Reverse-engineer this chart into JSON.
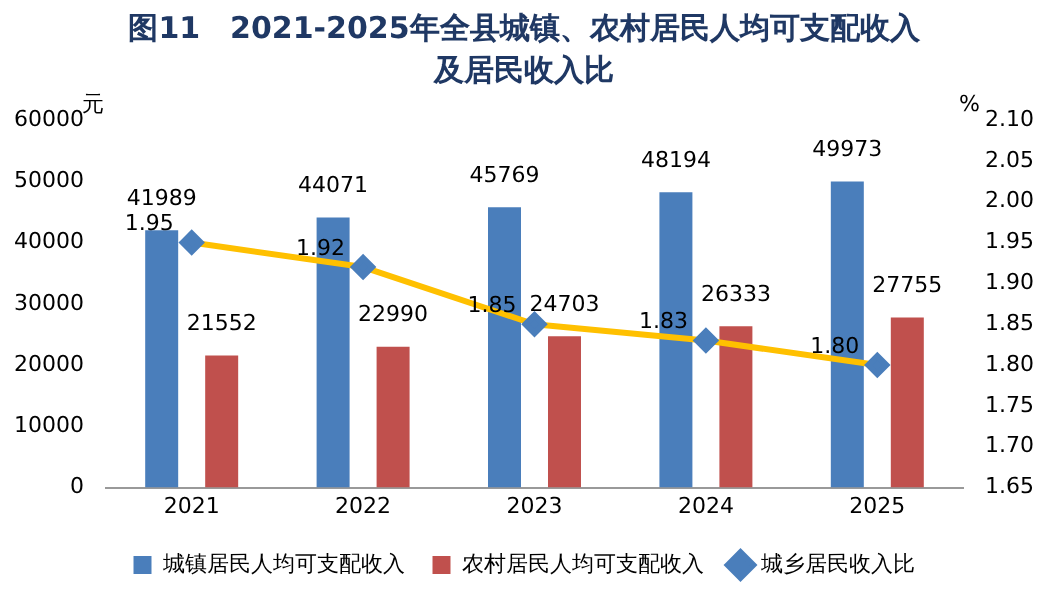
{
  "chart_data": {
    "type": "bar",
    "title": "图11　2021-2025年全县城镇、农村居民人均可支配收入及居民收入比",
    "ylabel": "元",
    "y2label": "%",
    "categories": [
      "2021",
      "2022",
      "2023",
      "2024",
      "2025"
    ],
    "series": [
      {
        "name": "城镇居民人均可支配收入",
        "color": "#4a7ebb",
        "values": [
          41989,
          44071,
          45769,
          48194,
          49973
        ]
      },
      {
        "name": "农村居民人均可支配收入",
        "color": "#c0504d",
        "values": [
          21552,
          22990,
          24703,
          26333,
          27755
        ]
      },
      {
        "name": "城乡居民收入比",
        "type": "line",
        "axis": "y2",
        "color": "#ffc000",
        "marker": "diamond",
        "values": [
          1.95,
          1.92,
          1.85,
          1.83,
          1.8
        ],
        "value_labels": [
          "1.95",
          "1.92",
          "1.85",
          "1.83",
          "1.80"
        ]
      }
    ],
    "ylim": [
      0,
      60000
    ],
    "yticks": [
      0,
      10000,
      20000,
      30000,
      40000,
      50000,
      60000
    ],
    "y2lim": [
      1.65,
      2.1
    ],
    "y2ticks": [
      1.65,
      {
        "value": 1.7,
        "label": "1.70"
      },
      1.75,
      {
        "value": 1.8,
        "label": "1.80"
      },
      1.85,
      {
        "value": 1.9,
        "label": "1.90"
      },
      1.95,
      {
        "value": 2.0,
        "label": "2.00"
      },
      2.05,
      {
        "value": 2.1,
        "label": "2.10"
      }
    ],
    "data_labels": true,
    "legend": "bottom",
    "grid": false
  }
}
